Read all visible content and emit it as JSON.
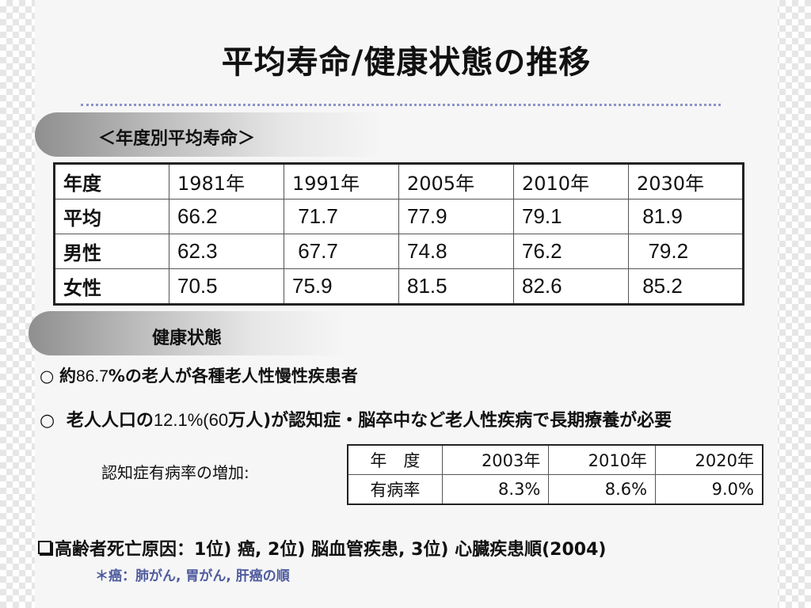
{
  "title": "平均寿命/健康状態の推移",
  "section1_label": "＜年度別平均寿命＞",
  "life_table": {
    "header": [
      "年度",
      "1981年",
      "1991年",
      "2005年",
      "2010年",
      "2030年"
    ],
    "rows": [
      [
        "平均",
        "66.2",
        " 71.7",
        "77.9",
        "79.1",
        " 81.9"
      ],
      [
        "男性",
        "62.3",
        " 67.7",
        "74.8",
        "76.2",
        "  79.2"
      ],
      [
        "女性",
        "70.5",
        "75.9",
        "81.5",
        "82.6",
        " 85.2"
      ]
    ]
  },
  "section2_label": "健康状態",
  "bullet_symbol": "○",
  "bullet1": {
    "prefix": "約",
    "value": "86.7",
    "suffix": "%の老人が各種老人性慢性疾患者"
  },
  "bullet2": {
    "prefix": " 老人人口の",
    "value": "12.1%(60",
    "suffix": "万人)が認知症・脳卒中など老人性疾病で長期療養が必要"
  },
  "prevalence_label": "認知症有病率の増加:",
  "prevalence_table": {
    "header": [
      "年　度",
      "2003年",
      "2010年",
      "2020年"
    ],
    "row": [
      "有病率",
      "8.3%",
      "8.6%",
      "9.0%"
    ]
  },
  "death_causes": "高齢者死亡原因：1位) 癌, 2位) 脳血管疾患, 3位) 心臓疾患順(2004)",
  "note": "＊癌：肺がん, 胃がん, 肝癌の順"
}
